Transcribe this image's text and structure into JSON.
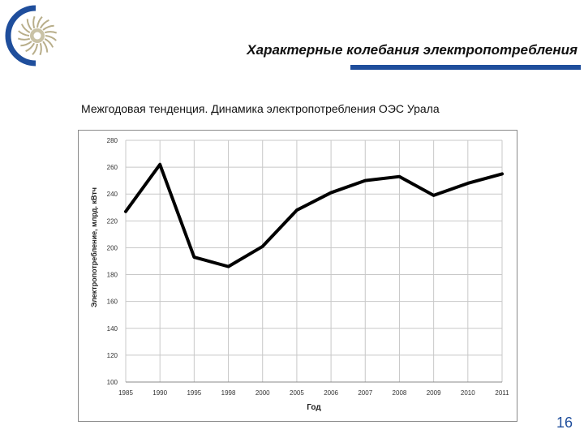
{
  "slide": {
    "title": "Характерные колебания электропотребления",
    "caption": "Межгодовая тенденция. Динамика электропотребления ОЭС Урала",
    "page_number": "16",
    "accent_color": "#1f4e9c",
    "logo_icon": "sun-logo-icon"
  },
  "chart_data": {
    "type": "line",
    "categories": [
      "1985",
      "1990",
      "1995",
      "1998",
      "2000",
      "2005",
      "2006",
      "2007",
      "2008",
      "2009",
      "2010",
      "2011"
    ],
    "series": [
      {
        "values": [
          227,
          262,
          193,
          186,
          201,
          228,
          241,
          250,
          253,
          239,
          248,
          255
        ]
      }
    ],
    "xlabel": "Год",
    "ylabel": "Электропотребление, млрд. кВтч",
    "ylim": [
      100,
      280
    ],
    "yticks": [
      "100",
      "120",
      "140",
      "160",
      "180",
      "200",
      "220",
      "240",
      "260",
      "280"
    ],
    "grid": true,
    "line_color": "#000000"
  }
}
